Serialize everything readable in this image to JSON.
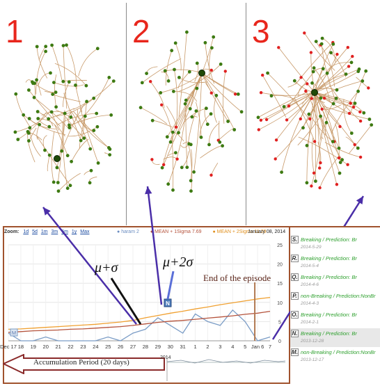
{
  "panels": [
    {
      "number": "1"
    },
    {
      "number": "2"
    },
    {
      "number": "3"
    }
  ],
  "toolbar": {
    "zoom_label": "Zoom:",
    "zoom_options": [
      "1d",
      "5d",
      "1m",
      "3m",
      "6m",
      "1y",
      "Max"
    ]
  },
  "legend": {
    "series1": "haram 2",
    "series2": "MEAN + 1Sigma 7.69",
    "series3": "MEAN + 2Sigma 11.29"
  },
  "date_label": "January 08, 2014",
  "annotations": {
    "mu_sigma": "μ+σ",
    "mu_2sigma": "μ+2σ",
    "end_episode": "End of the episode",
    "accumulation": "Accumulation Period (20 days)",
    "mini_year": "2014",
    "flag_n": "N",
    "flag_m": "M"
  },
  "side_items": [
    {
      "letter": "S.",
      "title": "Breaking / Prediction: Br",
      "date": "2014-5-29"
    },
    {
      "letter": "R.",
      "title": "Breaking / Prediction: Br",
      "date": "2014-5-4"
    },
    {
      "letter": "Q.",
      "title": "Breaking / Prediction: Br",
      "date": "2014-4-6"
    },
    {
      "letter": "P.",
      "title": "non-Breaking / Prediction:NonBr",
      "date": "2014-4-3"
    },
    {
      "letter": "O.",
      "title": "Breaking / Prediction: Br",
      "date": "2014-2-1"
    },
    {
      "letter": "N.",
      "title": "Breaking / Prediction: Br",
      "date": "2013-12-28"
    },
    {
      "letter": "M.",
      "title": "non-Breaking / Prediction:NonBr",
      "date": "2013-12-17"
    }
  ],
  "colors": {
    "series1": "#7a9cc6",
    "series2": "#b5533c",
    "series3": "#f0a030",
    "panel_number": "#e8261c",
    "node_green": "#3d7a12",
    "node_red": "#e02020",
    "edge": "#c89a6a",
    "arrow": "#4a2ea8"
  },
  "chart_data": {
    "type": "line",
    "categories": [
      "Dec 17",
      "18",
      "19",
      "20",
      "21",
      "22",
      "23",
      "24",
      "25",
      "26",
      "27",
      "28",
      "29",
      "30",
      "31",
      "1",
      "2",
      "3",
      "4",
      "5",
      "Jan 6",
      "7"
    ],
    "ylim": [
      0,
      25
    ],
    "y_ticks": [
      0,
      5,
      10,
      15,
      20,
      25
    ],
    "series": [
      {
        "name": "haram 2",
        "values": [
          2,
          0,
          0,
          1,
          0,
          0,
          0,
          0,
          1,
          0,
          2,
          3,
          6,
          4,
          2,
          7,
          5,
          4,
          8,
          5,
          0,
          1
        ]
      },
      {
        "name": "MEAN + 1Sigma 7.69",
        "values": [
          2.2,
          2.4,
          2.6,
          2.7,
          2.8,
          3.0,
          3.1,
          3.3,
          3.5,
          3.7,
          4.0,
          4.4,
          4.8,
          5.1,
          5.3,
          5.6,
          5.9,
          6.2,
          6.5,
          6.9,
          7.2,
          7.69
        ]
      },
      {
        "name": "MEAN + 2Sigma 11.29",
        "values": [
          3.0,
          3.1,
          3.3,
          3.5,
          3.7,
          3.9,
          4.1,
          4.3,
          4.6,
          4.9,
          5.3,
          6.0,
          6.6,
          7.2,
          7.7,
          8.3,
          8.8,
          9.4,
          9.9,
          10.4,
          10.9,
          11.29
        ]
      }
    ]
  }
}
